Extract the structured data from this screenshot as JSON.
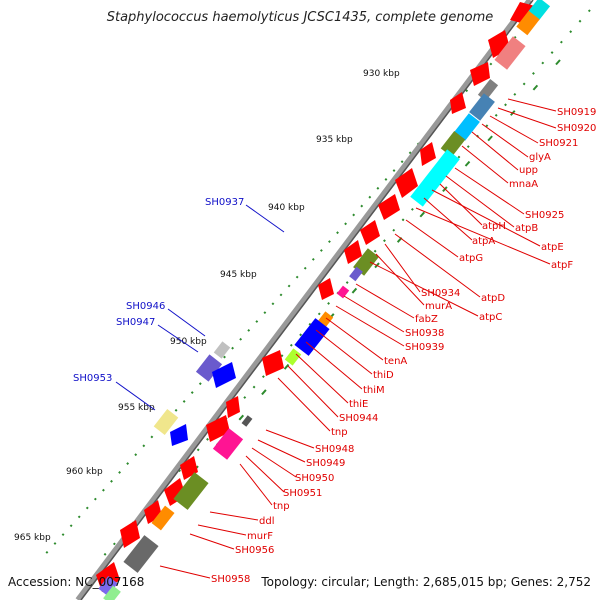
{
  "title": "Staphylococcus haemolyticus JCSC1435, complete genome",
  "accession": "Accession: NC_007168",
  "summary": "Topology: circular; Length: 2,685,015 bp; Genes: 2,752",
  "kbp_ticks": [
    "930 kbp",
    "935 kbp",
    "940 kbp",
    "945 kbp",
    "950 kbp",
    "955 kbp",
    "960 kbp",
    "965 kbp"
  ],
  "forward_labels": [
    "SH0919",
    "SH0920",
    "SH0921",
    "glyA",
    "upp",
    "mnaA",
    "SH0925",
    "atpB",
    "atpH",
    "atpE",
    "atpA",
    "atpF",
    "atpG",
    "atpD",
    "SH0934",
    "murA",
    "atpC",
    "fabZ",
    "SH0938",
    "SH0939",
    "tenA",
    "thiD",
    "thiM",
    "thiE",
    "SH0944",
    "tnp",
    "SH0948",
    "SH0949",
    "SH0950",
    "SH0951",
    "tnp",
    "ddl",
    "murF",
    "SH0956",
    "SH0958"
  ],
  "reverse_labels": [
    "SH0937",
    "SH0946",
    "SH0947",
    "SH0953"
  ],
  "colors": {
    "forward_label": "#e00000",
    "reverse_label": "#1010c8",
    "backbone": "#888888"
  }
}
